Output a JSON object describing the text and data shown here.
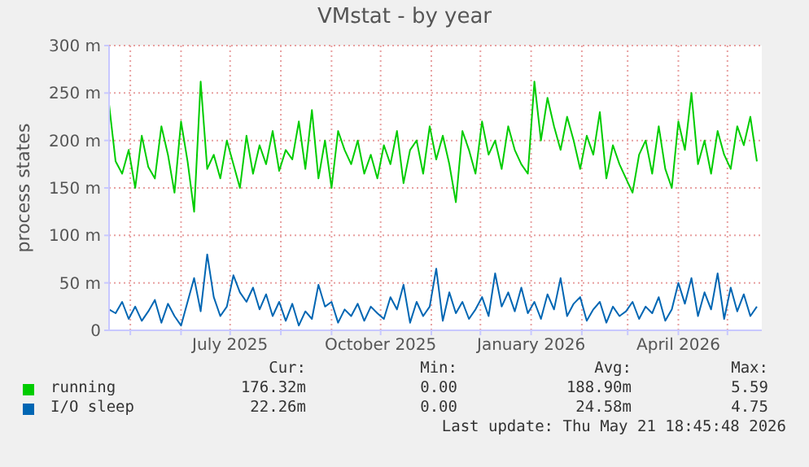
{
  "chart_data": {
    "type": "line",
    "title": "VMstat - by year",
    "ylabel": "process states",
    "x": [
      "2025-04-18",
      "2025-04-22",
      "2025-04-26",
      "2025-04-30",
      "2025-05-04",
      "2025-05-08",
      "2025-05-12",
      "2025-05-16",
      "2025-05-20",
      "2025-05-24",
      "2025-05-28",
      "2025-06-01",
      "2025-06-05",
      "2025-06-09",
      "2025-06-13",
      "2025-06-17",
      "2025-06-21",
      "2025-06-25",
      "2025-06-29",
      "2025-07-03",
      "2025-07-07",
      "2025-07-11",
      "2025-07-15",
      "2025-07-19",
      "2025-07-23",
      "2025-07-27",
      "2025-07-31",
      "2025-08-04",
      "2025-08-08",
      "2025-08-12",
      "2025-08-16",
      "2025-08-20",
      "2025-08-24",
      "2025-08-28",
      "2025-09-01",
      "2025-09-05",
      "2025-09-09",
      "2025-09-13",
      "2025-09-17",
      "2025-09-21",
      "2025-09-25",
      "2025-09-29",
      "2025-10-03",
      "2025-10-07",
      "2025-10-11",
      "2025-10-15",
      "2025-10-19",
      "2025-10-23",
      "2025-10-27",
      "2025-10-31",
      "2025-11-04",
      "2025-11-08",
      "2025-11-12",
      "2025-11-16",
      "2025-11-20",
      "2025-11-24",
      "2025-11-28",
      "2025-12-02",
      "2025-12-06",
      "2025-12-10",
      "2025-12-14",
      "2025-12-18",
      "2025-12-22",
      "2025-12-26",
      "2025-12-30",
      "2026-01-03",
      "2026-01-07",
      "2026-01-11",
      "2026-01-15",
      "2026-01-19",
      "2026-01-23",
      "2026-01-27",
      "2026-01-31",
      "2026-02-04",
      "2026-02-08",
      "2026-02-12",
      "2026-02-16",
      "2026-02-20",
      "2026-02-24",
      "2026-02-28",
      "2026-03-04",
      "2026-03-08",
      "2026-03-12",
      "2026-03-16",
      "2026-03-20",
      "2026-03-24",
      "2026-03-28",
      "2026-04-01",
      "2026-04-05",
      "2026-04-09",
      "2026-04-13",
      "2026-04-17",
      "2026-04-21",
      "2026-04-25",
      "2026-04-29",
      "2026-05-03",
      "2026-05-07",
      "2026-05-11",
      "2026-05-15",
      "2026-05-19"
    ],
    "series": [
      {
        "name": "running",
        "color": "#00cc00",
        "values": [
          238,
          178,
          165,
          190,
          150,
          205,
          172,
          160,
          215,
          185,
          145,
          220,
          178,
          125,
          262,
          170,
          185,
          160,
          200,
          175,
          150,
          205,
          165,
          195,
          175,
          210,
          168,
          190,
          180,
          220,
          170,
          232,
          160,
          200,
          150,
          210,
          190,
          175,
          200,
          165,
          185,
          160,
          195,
          175,
          210,
          155,
          190,
          200,
          165,
          215,
          180,
          205,
          175,
          135,
          210,
          190,
          165,
          220,
          185,
          200,
          170,
          215,
          190,
          175,
          165,
          262,
          200,
          245,
          215,
          190,
          225,
          200,
          170,
          205,
          185,
          230,
          160,
          195,
          175,
          160,
          145,
          185,
          200,
          165,
          215,
          170,
          150,
          220,
          190,
          250,
          175,
          200,
          165,
          210,
          185,
          170,
          215,
          195,
          225,
          178
        ]
      },
      {
        "name": "I/O sleep",
        "color": "#0066b3",
        "values": [
          22,
          18,
          30,
          12,
          25,
          10,
          20,
          32,
          8,
          28,
          15,
          5,
          30,
          55,
          20,
          80,
          35,
          15,
          25,
          58,
          40,
          30,
          45,
          22,
          38,
          15,
          30,
          10,
          28,
          5,
          20,
          12,
          48,
          25,
          30,
          8,
          22,
          15,
          28,
          10,
          25,
          18,
          12,
          35,
          22,
          48,
          8,
          30,
          15,
          25,
          65,
          10,
          40,
          18,
          30,
          12,
          22,
          35,
          15,
          60,
          25,
          40,
          20,
          45,
          18,
          30,
          12,
          38,
          22,
          55,
          15,
          28,
          35,
          10,
          22,
          30,
          8,
          25,
          15,
          20,
          30,
          12,
          25,
          18,
          35,
          10,
          22,
          50,
          28,
          55,
          15,
          40,
          22,
          60,
          12,
          45,
          20,
          38,
          15,
          25
        ]
      }
    ],
    "xlim": [
      "2025-04-18",
      "2026-05-22"
    ],
    "xticks": [
      {
        "value": "2025-05-01",
        "label": null
      },
      {
        "value": "2025-06-01",
        "label": null
      },
      {
        "value": "2025-07-01",
        "label": "July 2025"
      },
      {
        "value": "2025-08-01",
        "label": null
      },
      {
        "value": "2025-09-01",
        "label": null
      },
      {
        "value": "2025-10-01",
        "label": "October 2025"
      },
      {
        "value": "2025-11-01",
        "label": null
      },
      {
        "value": "2025-12-01",
        "label": null
      },
      {
        "value": "2026-01-01",
        "label": "January 2026"
      },
      {
        "value": "2026-02-01",
        "label": null
      },
      {
        "value": "2026-03-01",
        "label": null
      },
      {
        "value": "2026-04-01",
        "label": "April 2026"
      },
      {
        "value": "2026-05-01",
        "label": null
      }
    ],
    "ylim": [
      0,
      300
    ],
    "yticks": [
      0,
      {
        "value": 50,
        "label": "50 m"
      },
      {
        "value": 100,
        "label": "100 m"
      },
      {
        "value": 150,
        "label": "150 m"
      },
      {
        "value": 200,
        "label": "200 m"
      },
      {
        "value": 250,
        "label": "250 m"
      },
      {
        "value": 300,
        "label": "300 m"
      }
    ],
    "grid": true,
    "legend": "bottom",
    "line_style": "solid",
    "marker": "none",
    "annotations": [
      "Cur:",
      "Min:",
      "Avg:",
      "Max:",
      "176.32m",
      "0.00",
      "188.90m",
      "5.59",
      "22.26m",
      "0.00",
      "24.58m",
      "4.75",
      "Last update: Thu May 21 18:45:48 2026"
    ]
  }
}
